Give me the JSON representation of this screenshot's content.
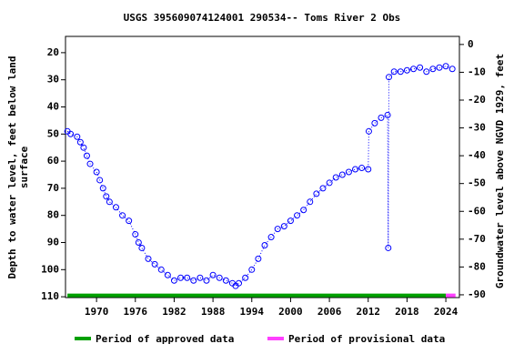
{
  "chart_data": {
    "type": "scatter",
    "title": "USGS 395609074124001 290534-- Toms River 2 Obs",
    "ylabel": [
      "Depth to water level, feet below land",
      "surface"
    ],
    "y2label": "Groundwater level above NGVD 1929, feet",
    "xlim": [
      1965.2,
      2026.1
    ],
    "xticks": [
      1970,
      1976,
      1982,
      1988,
      1994,
      2000,
      2006,
      2012,
      2018,
      2024
    ],
    "ylim": [
      110.3,
      14
    ],
    "yticks": [
      20,
      30,
      40,
      50,
      60,
      70,
      80,
      90,
      100,
      110
    ],
    "y2lim": [
      -91,
      2.9
    ],
    "y2ticks": [
      0,
      -10,
      -20,
      -30,
      -40,
      -50,
      -60,
      -70,
      -80,
      -90
    ],
    "series": [
      {
        "name": "Depth to water level",
        "color": "#0000ff",
        "x": [
          1965.5,
          1966,
          1967,
          1967.5,
          1968,
          1968.5,
          1969,
          1970,
          1970.5,
          1971,
          1971.5,
          1972,
          1973,
          1974,
          1975,
          1976,
          1976.5,
          1977,
          1978,
          1979,
          1980,
          1981,
          1982,
          1983,
          1984,
          1985,
          1986,
          1987,
          1988,
          1989,
          1990,
          1991,
          1991.5,
          1992,
          1993,
          1994,
          1995,
          1996,
          1997,
          1998,
          1999,
          2000,
          2001,
          2002,
          2003,
          2004,
          2005,
          2006,
          2007,
          2008,
          2009,
          2010,
          2011,
          2012,
          2012.1,
          2013,
          2014,
          2015,
          2015.1,
          2015.2,
          2016,
          2017,
          2018,
          2019,
          2020,
          2021,
          2022,
          2023,
          2024,
          2025
        ],
        "values": [
          49,
          50,
          51,
          53,
          55,
          58,
          61,
          64,
          67,
          70,
          73,
          75,
          77,
          80,
          82,
          87,
          90,
          92,
          96,
          98,
          100,
          102,
          104,
          103,
          103,
          104,
          103,
          104,
          102,
          103,
          104,
          105,
          106,
          105,
          103,
          100,
          96,
          91,
          88,
          85,
          84,
          82,
          80,
          78,
          75,
          72,
          70,
          68,
          66,
          65,
          64,
          63,
          62.5,
          63,
          49,
          46,
          44,
          43,
          92,
          29,
          27,
          27,
          26.5,
          26,
          25.5,
          27,
          26,
          25.5,
          25,
          26
        ]
      }
    ],
    "periods": [
      {
        "name": "Period of approved data",
        "color": "#00a000",
        "x": [
          1965.5,
          2024
        ]
      },
      {
        "name": "Period of provisional data",
        "color": "#ff40ff",
        "x": [
          2024,
          2025.5
        ]
      }
    ],
    "period_depth": 109.5
  }
}
